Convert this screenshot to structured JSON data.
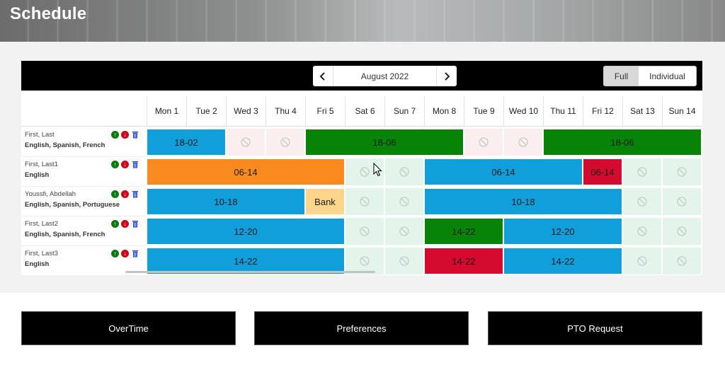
{
  "header": {
    "title": "Schedule"
  },
  "toolbar": {
    "month": "August 2022",
    "prev_icon": "chevron-left-icon",
    "next_icon": "chevron-right-icon",
    "view_full": "Full",
    "view_individual": "Individual",
    "selected_view": "Full"
  },
  "days": [
    "Mon 1",
    "Tue 2",
    "Wed 3",
    "Thu 4",
    "Fri 5",
    "Sat 6",
    "Sun 7",
    "Mon 8",
    "Tue 9",
    "Wed 10",
    "Thu 11",
    "Fri 12",
    "Sat 13",
    "Sun 14"
  ],
  "colors": {
    "blue": "#119fdb",
    "green": "#078307",
    "orange": "#fb8a1e",
    "red": "#d40a2f",
    "bank": "#fdd68c",
    "off": "#e3f4ea",
    "off_pink": "#fbeeee"
  },
  "employees": [
    {
      "name": "First, Last",
      "languages": "English, Spanish, French"
    },
    {
      "name": "First, Last1",
      "languages": "English"
    },
    {
      "name": "Youssfi, Abdellah",
      "languages": "English, Spanish, Portuguese"
    },
    {
      "name": "First, Last2",
      "languages": "English, Spanish, French"
    },
    {
      "name": "First, Last3",
      "languages": "English"
    }
  ],
  "shifts": [
    [
      {
        "label": "18-02",
        "start": 0,
        "span": 2,
        "color": "blue"
      },
      {
        "label": "18-06",
        "start": 4,
        "span": 4,
        "color": "green"
      },
      {
        "label": "18-06",
        "start": 10,
        "span": 4,
        "color": "green"
      }
    ],
    [
      {
        "label": "06-14",
        "start": 0,
        "span": 5,
        "color": "orange"
      },
      {
        "label": "06-14",
        "start": 7,
        "span": 4,
        "color": "blue"
      },
      {
        "label": "06-14",
        "start": 11,
        "span": 1,
        "color": "red"
      }
    ],
    [
      {
        "label": "10-18",
        "start": 0,
        "span": 4,
        "color": "blue"
      },
      {
        "label": "Bank",
        "start": 4,
        "span": 1,
        "color": "bank"
      },
      {
        "label": "10-18",
        "start": 7,
        "span": 5,
        "color": "blue"
      }
    ],
    [
      {
        "label": "12-20",
        "start": 0,
        "span": 5,
        "color": "blue"
      },
      {
        "label": "14-22",
        "start": 7,
        "span": 2,
        "color": "green"
      },
      {
        "label": "12-20",
        "start": 9,
        "span": 3,
        "color": "blue"
      }
    ],
    [
      {
        "label": "14-22",
        "start": 0,
        "span": 5,
        "color": "blue"
      },
      {
        "label": "14-22",
        "start": 7,
        "span": 2,
        "color": "red"
      },
      {
        "label": "14-22",
        "start": 9,
        "span": 3,
        "color": "blue"
      }
    ]
  ],
  "off_days": [
    {
      "row": 0,
      "days": [
        2,
        3,
        8,
        9
      ],
      "tone": "off_pink"
    },
    {
      "row": 1,
      "days": [
        5,
        6,
        12,
        13
      ],
      "tone": "off"
    },
    {
      "row": 2,
      "days": [
        5,
        6,
        12,
        13
      ],
      "tone": "off"
    },
    {
      "row": 3,
      "days": [
        5,
        6,
        12,
        13
      ],
      "tone": "off"
    },
    {
      "row": 4,
      "days": [
        5,
        6,
        12,
        13
      ],
      "tone": "off"
    }
  ],
  "buttons": {
    "overtime": "OverTime",
    "preferences": "Preferences",
    "pto_request": "PTO Request"
  }
}
